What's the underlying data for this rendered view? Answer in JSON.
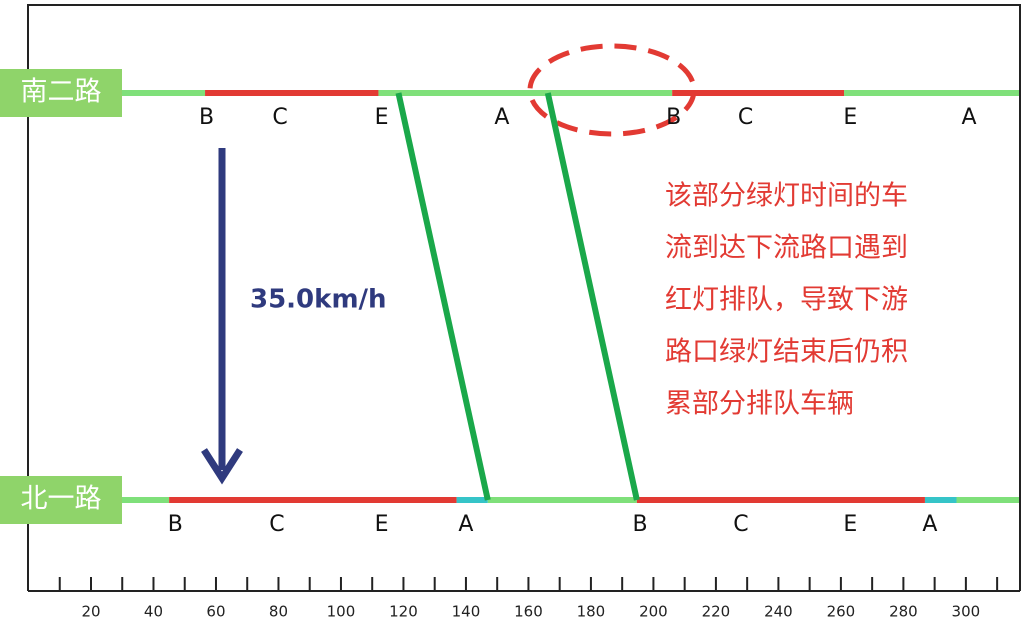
{
  "chart_data": {
    "type": "time-space",
    "xlim": [
      0,
      317
    ],
    "xticks": [
      20,
      40,
      60,
      80,
      100,
      120,
      140,
      160,
      180,
      200,
      220,
      240,
      260,
      280,
      300
    ],
    "minor_xticks": [
      10,
      30,
      50,
      70,
      90,
      110,
      130,
      150,
      170,
      190,
      210,
      230,
      250,
      270,
      290,
      310
    ],
    "roads": [
      {
        "name": "南二路",
        "phases": [
          {
            "start": 0,
            "end": 56.5,
            "color": "#7fe07a"
          },
          {
            "start": 56.5,
            "end": 112,
            "color": "#e23a33"
          },
          {
            "start": 112,
            "end": 206,
            "color": "#7fe07a"
          },
          {
            "start": 206,
            "end": 261,
            "color": "#e23a33"
          },
          {
            "start": 261,
            "end": 317,
            "color": "#7fe07a"
          }
        ],
        "phase_labels": [
          {
            "label": "B",
            "x": 57
          },
          {
            "label": "C",
            "x": 80.5
          },
          {
            "label": "E",
            "x": 113
          },
          {
            "label": "A",
            "x": 151.5
          },
          {
            "label": "B",
            "x": 206.5
          },
          {
            "label": "C",
            "x": 229.5
          },
          {
            "label": "E",
            "x": 263
          },
          {
            "label": "A",
            "x": 301
          }
        ]
      },
      {
        "name": "北一路",
        "phases": [
          {
            "start": 0,
            "end": 45,
            "color": "#7fe07a"
          },
          {
            "start": 45,
            "end": 137,
            "color": "#e23a33"
          },
          {
            "start": 137,
            "end": 147,
            "color": "#35c4c8"
          },
          {
            "start": 147,
            "end": 194.7,
            "color": "#7fe07a"
          },
          {
            "start": 194.7,
            "end": 286.9,
            "color": "#e23a33"
          },
          {
            "start": 286.9,
            "end": 297,
            "color": "#35c4c8"
          },
          {
            "start": 297,
            "end": 317,
            "color": "#7fe07a"
          }
        ],
        "phase_labels": [
          {
            "label": "B",
            "x": 47
          },
          {
            "label": "C",
            "x": 79.5
          },
          {
            "label": "E",
            "x": 113
          },
          {
            "label": "A",
            "x": 140
          },
          {
            "label": "B",
            "x": 195.7
          },
          {
            "label": "C",
            "x": 228
          },
          {
            "label": "E",
            "x": 263
          },
          {
            "label": "A",
            "x": 288.5
          }
        ]
      }
    ],
    "bands": [
      {
        "from": 118.4,
        "to": 147,
        "color": "#1aa84a"
      },
      {
        "from": 166.2,
        "to": 194.7,
        "color": "#1aa84a"
      }
    ],
    "speed_label": "35.0km/h",
    "annotation": [
      "该部分绿灯时间的车",
      "流到达下流路口遇到",
      "红灯排队，导致下游",
      "路口绿灯结束后仍积",
      "累部分排队车辆"
    ]
  }
}
